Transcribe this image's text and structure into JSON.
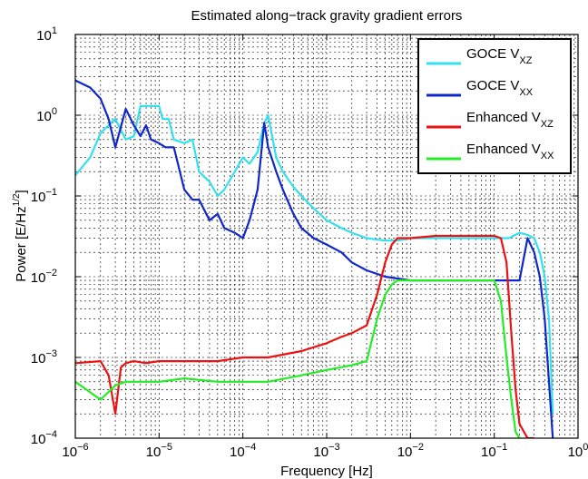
{
  "chart_data": {
    "type": "line",
    "title": "Estimated along−track gravity gradient errors",
    "xlabel": "Frequency [Hz]",
    "ylabel": "Power [E/Hz^(1/2)]",
    "ylabel_parts": {
      "main": "Power [E/Hz",
      "sup": "1/2",
      "close": "]"
    },
    "x_scale": "log",
    "y_scale": "log",
    "xlim": [
      1e-06,
      1
    ],
    "ylim": [
      0.0001,
      10
    ],
    "grid": true,
    "legend_position": "top-right",
    "x_ticks": [
      {
        "value": 1e-06,
        "base": "10",
        "exp": "−6"
      },
      {
        "value": 1e-05,
        "base": "10",
        "exp": "−5"
      },
      {
        "value": 0.0001,
        "base": "10",
        "exp": "−4"
      },
      {
        "value": 0.001,
        "base": "10",
        "exp": "−3"
      },
      {
        "value": 0.01,
        "base": "10",
        "exp": "−2"
      },
      {
        "value": 0.1,
        "base": "10",
        "exp": "−1"
      },
      {
        "value": 1,
        "base": "10",
        "exp": "0"
      }
    ],
    "y_ticks": [
      {
        "value": 0.0001,
        "base": "10",
        "exp": "−4"
      },
      {
        "value": 0.001,
        "base": "10",
        "exp": "−3"
      },
      {
        "value": 0.01,
        "base": "10",
        "exp": "−2"
      },
      {
        "value": 0.1,
        "base": "10",
        "exp": "−1"
      },
      {
        "value": 1,
        "base": "10",
        "exp": "0"
      },
      {
        "value": 10,
        "base": "10",
        "exp": "1"
      }
    ],
    "series": [
      {
        "name": "GOCE V_XZ",
        "label_main": "GOCE V",
        "label_sub": "XZ",
        "color": "#33e0f0",
        "x": [
          1e-06,
          1.5e-06,
          2e-06,
          3e-06,
          4e-06,
          5e-06,
          6e-06,
          7e-06,
          8e-06,
          1e-05,
          1.1e-05,
          1.3e-05,
          1.5e-05,
          2e-05,
          2.5e-05,
          3e-05,
          4e-05,
          5e-05,
          6e-05,
          8e-05,
          0.0001,
          0.00012,
          0.00015,
          0.00018,
          0.0002,
          0.00025,
          0.0003,
          0.0004,
          0.0005,
          0.0007,
          0.001,
          0.0015,
          0.002,
          0.003,
          0.005,
          0.007,
          0.01,
          0.02,
          0.05,
          0.1,
          0.15,
          0.2,
          0.25,
          0.3,
          0.35,
          0.4,
          0.45,
          0.5
        ],
        "y": [
          0.18,
          0.3,
          0.6,
          0.9,
          0.5,
          0.55,
          1.3,
          1.3,
          1.3,
          1.3,
          0.9,
          0.9,
          0.5,
          0.45,
          0.5,
          0.2,
          0.15,
          0.1,
          0.12,
          0.2,
          0.3,
          0.25,
          0.35,
          0.8,
          1.0,
          0.3,
          0.2,
          0.13,
          0.1,
          0.07,
          0.05,
          0.04,
          0.035,
          0.03,
          0.028,
          0.028,
          0.03,
          0.03,
          0.03,
          0.03,
          0.03,
          0.035,
          0.033,
          0.03,
          0.02,
          0.01,
          0.003,
          0.0002
        ]
      },
      {
        "name": "GOCE V_XX",
        "label_main": "GOCE V",
        "label_sub": "XX",
        "color": "#1028c8",
        "x": [
          1e-06,
          1.5e-06,
          2e-06,
          2.5e-06,
          3e-06,
          4e-06,
          5e-06,
          6e-06,
          7e-06,
          8e-06,
          1e-05,
          1.2e-05,
          1.5e-05,
          2e-05,
          2.5e-05,
          3e-05,
          4e-05,
          5e-05,
          6e-05,
          8e-05,
          0.0001,
          0.00012,
          0.00015,
          0.00018,
          0.0002,
          0.00025,
          0.0003,
          0.0004,
          0.0005,
          0.0007,
          0.001,
          0.0015,
          0.002,
          0.003,
          0.005,
          0.01,
          0.02,
          0.05,
          0.1,
          0.15,
          0.2,
          0.25,
          0.3,
          0.35,
          0.4,
          0.45,
          0.5
        ],
        "y": [
          2.7,
          2.2,
          1.6,
          0.9,
          0.4,
          1.2,
          0.75,
          0.55,
          0.75,
          0.5,
          0.45,
          0.4,
          0.4,
          0.12,
          0.09,
          0.09,
          0.05,
          0.06,
          0.04,
          0.035,
          0.03,
          0.05,
          0.12,
          0.8,
          0.4,
          0.2,
          0.12,
          0.06,
          0.04,
          0.03,
          0.025,
          0.02,
          0.015,
          0.012,
          0.01,
          0.009,
          0.009,
          0.009,
          0.009,
          0.009,
          0.009,
          0.03,
          0.02,
          0.01,
          0.003,
          0.0005,
          0.0001
        ]
      },
      {
        "name": "Enhanced V_XZ",
        "label_main": "Enhanced V",
        "label_sub": "XZ",
        "color": "#ee1111",
        "x": [
          1e-06,
          2e-06,
          2.5e-06,
          3e-06,
          3.5e-06,
          4e-06,
          5e-06,
          7e-06,
          1e-05,
          2e-05,
          5e-05,
          0.0001,
          0.0002,
          0.0005,
          0.001,
          0.0015,
          0.002,
          0.003,
          0.004,
          0.005,
          0.006,
          0.007,
          0.01,
          0.02,
          0.05,
          0.1,
          0.12,
          0.14,
          0.16,
          0.18,
          0.2,
          0.25,
          0.3
        ],
        "y": [
          0.00085,
          0.0009,
          0.0006,
          0.0002,
          0.00075,
          0.00085,
          0.0009,
          0.00085,
          0.0009,
          0.0009,
          0.0009,
          0.001,
          0.001,
          0.0012,
          0.0015,
          0.0018,
          0.002,
          0.0025,
          0.006,
          0.015,
          0.025,
          0.03,
          0.03,
          0.032,
          0.032,
          0.032,
          0.03,
          0.015,
          0.002,
          0.0004,
          0.00015,
          0.0001,
          0.0001
        ]
      },
      {
        "name": "Enhanced V_XX",
        "label_main": "Enhanced V",
        "label_sub": "XX",
        "color": "#22ee22",
        "x": [
          1e-06,
          2e-06,
          3e-06,
          4e-06,
          5e-06,
          7e-06,
          1e-05,
          2e-05,
          5e-05,
          0.0001,
          0.0002,
          0.0005,
          0.001,
          0.002,
          0.003,
          0.004,
          0.005,
          0.006,
          0.007,
          0.01,
          0.02,
          0.05,
          0.1,
          0.12,
          0.14,
          0.16,
          0.18,
          0.2
        ],
        "y": [
          0.0005,
          0.0003,
          0.00045,
          0.0005,
          0.0005,
          0.0005,
          0.0005,
          0.00055,
          0.0005,
          0.0005,
          0.0005,
          0.0006,
          0.0007,
          0.0008,
          0.0009,
          0.003,
          0.006,
          0.008,
          0.009,
          0.009,
          0.009,
          0.009,
          0.009,
          0.005,
          0.001,
          0.0003,
          0.00012,
          0.0001
        ]
      }
    ]
  }
}
